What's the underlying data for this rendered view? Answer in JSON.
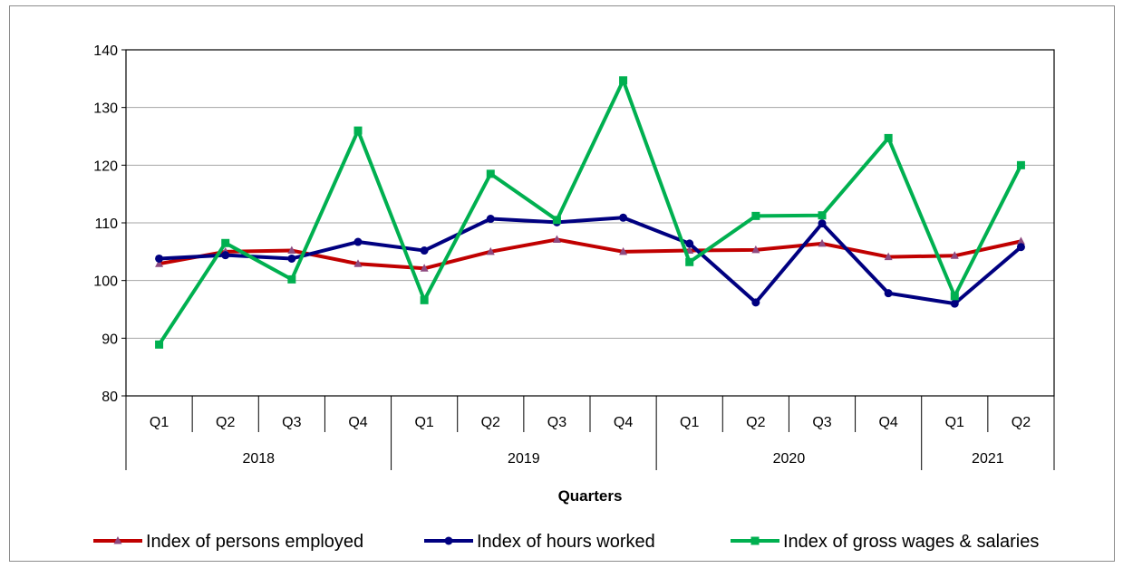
{
  "chart_data": {
    "type": "line",
    "xlabel": "Quarters",
    "ylabel": "",
    "ylim": [
      80,
      140
    ],
    "yticks": [
      80,
      90,
      100,
      110,
      120,
      130,
      140
    ],
    "grid": true,
    "legend_position": "bottom",
    "categories": [
      "Q1",
      "Q2",
      "Q3",
      "Q4",
      "Q1",
      "Q2",
      "Q3",
      "Q4",
      "Q1",
      "Q2",
      "Q3",
      "Q4",
      "Q1",
      "Q2"
    ],
    "year_groups": [
      {
        "label": "2018",
        "count": 4
      },
      {
        "label": "2019",
        "count": 4
      },
      {
        "label": "2020",
        "count": 4
      },
      {
        "label": "2021",
        "count": 2
      }
    ],
    "series": [
      {
        "name": "Index of persons employed",
        "color": "#c00000",
        "marker": "triangle",
        "values": [
          102.9,
          105.0,
          105.2,
          102.9,
          102.1,
          105.0,
          107.1,
          105.0,
          105.2,
          105.3,
          106.4,
          104.1,
          104.3,
          106.8
        ]
      },
      {
        "name": "Index of hours worked",
        "color": "#000080",
        "marker": "circle",
        "values": [
          103.8,
          104.4,
          103.8,
          106.7,
          105.2,
          110.7,
          110.1,
          110.9,
          106.4,
          96.2,
          109.9,
          97.8,
          96.0,
          105.8
        ]
      },
      {
        "name": "Index of gross wages & salaries",
        "color": "#00b050",
        "marker": "square",
        "values": [
          88.9,
          106.5,
          100.2,
          126.0,
          96.6,
          118.5,
          110.5,
          134.7,
          103.2,
          111.2,
          111.3,
          124.7,
          97.3,
          120.0
        ]
      }
    ]
  }
}
